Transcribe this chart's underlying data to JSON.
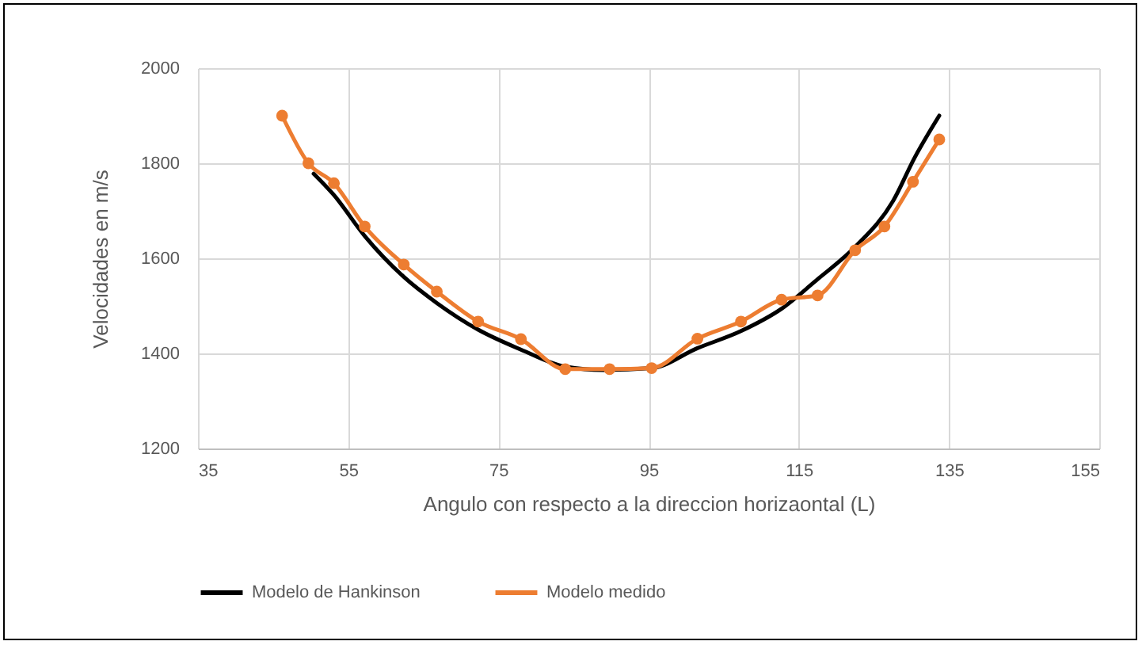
{
  "chart_data": {
    "type": "line",
    "xlabel": "Angulo con respecto  a la direccion horizaontal (L)",
    "ylabel": "Velocidades  en m/s",
    "xlim": [
      35,
      155
    ],
    "xticks": [
      35,
      55,
      75,
      95,
      115,
      135,
      155
    ],
    "ylim": [
      1200,
      2000
    ],
    "yticks": [
      1200,
      1400,
      1600,
      1800,
      2000
    ],
    "grid": true,
    "legend": "bottom",
    "line_style": "solid",
    "series": [
      {
        "name": "Modelo de Hankinson",
        "color": "#000000",
        "marker": "none",
        "x": [
          50.4,
          53.1,
          57.2,
          62.4,
          66.8,
          72.3,
          78,
          83.9,
          89,
          95.4,
          101.5,
          107.3,
          112.7,
          117.5,
          122.5,
          127.6,
          130.4,
          133.7
        ],
        "values": [
          1778,
          1733,
          1647,
          1561,
          1506,
          1450,
          1408,
          1372,
          1365,
          1369,
          1411,
          1447,
          1494,
          1556,
          1624,
          1722,
          1811,
          1900
        ]
      },
      {
        "name": "Modelo medido",
        "color": "#ed7d31",
        "marker": "circle",
        "x": [
          46.2,
          49.7,
          53.1,
          57.2,
          62.4,
          66.8,
          72.3,
          78,
          83.9,
          89.8,
          95.4,
          101.5,
          107.3,
          112.7,
          117.5,
          122.5,
          126.4,
          130.2,
          133.7
        ],
        "values": [
          1900,
          1800,
          1758,
          1667,
          1587,
          1530,
          1467,
          1430,
          1367,
          1367,
          1369,
          1431,
          1467,
          1513,
          1522,
          1617,
          1667,
          1761,
          1850
        ]
      }
    ]
  }
}
